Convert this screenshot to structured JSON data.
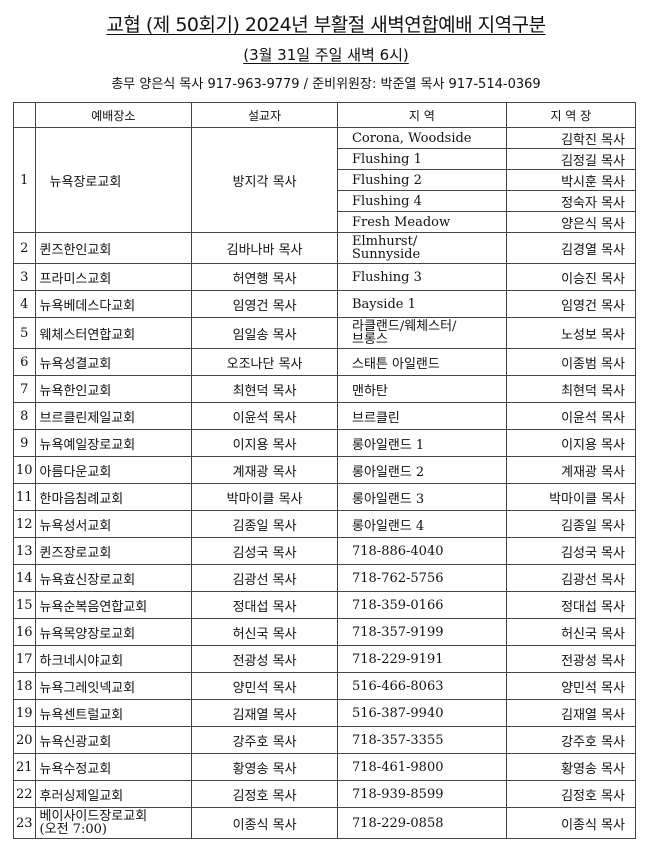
{
  "title": "교협 (제 50회기) 2024년 부활절 새벽연합예배 지역구분",
  "subtitle": "(3월 31일 주일 새벽 6시)",
  "contact": "총무 양은식 목사 917-963-9779 /   준비위원장: 박준열 목사 917-514-0369",
  "headers": [
    "",
    "예배장소",
    "설교자",
    "지 역",
    "지 역 장"
  ],
  "first_row": {
    "no": "1",
    "church": "뉴욕장로교회",
    "preacher": "방지각 목사",
    "regions": [
      {
        "region": "Corona, Woodside",
        "leader": "김학진 목사"
      },
      {
        "region": "Flushing 1",
        "leader": "김정길 목사"
      },
      {
        "region": "Flushing 2",
        "leader": "박시훈 목사"
      },
      {
        "region": "Flushing 4",
        "leader": "정숙자 목사"
      },
      {
        "region": "Fresh Meadow",
        "leader": "양은식 목사"
      }
    ]
  },
  "rows": [
    {
      "no": "2",
      "church": "퀸즈한인교회",
      "preacher": "김바나바 목사",
      "region": "Elmhurst/\nSunnyside",
      "leader": "김경열 목사"
    },
    {
      "no": "3",
      "church": "프라미스교회",
      "preacher": "허연행 목사",
      "region": "Flushing 3",
      "leader": "이승진 목사"
    },
    {
      "no": "4",
      "church": "뉴욕베데스다교회",
      "preacher": "임영건 목사",
      "region": "Bayside 1",
      "leader": "임영건 목사"
    },
    {
      "no": "5",
      "church": "웨체스터연합교회",
      "preacher": "임일송 목사",
      "region": "라클랜드/웨체스터/\n브롱스",
      "leader": "노성보 목사"
    },
    {
      "no": "6",
      "church": "뉴욕성결교회",
      "preacher": "오조나단 목사",
      "region": "스태튼 아일랜드",
      "leader": "이종범 목사"
    },
    {
      "no": "7",
      "church": "뉴욕한인교회",
      "preacher": "최현덕 목사",
      "region": "맨하탄",
      "leader": "최현덕 목사"
    },
    {
      "no": "8",
      "church": "브르클린제일교회",
      "preacher": "이윤석 목사",
      "region": "브르클린",
      "leader": "이윤석 목사"
    },
    {
      "no": "9",
      "church": "뉴욕예일장로교회",
      "preacher": "이지용 목사",
      "region": "롱아일랜드 1",
      "leader": "이지용 목사"
    },
    {
      "no": "10",
      "church": "아름다운교회",
      "preacher": "계재광 목사",
      "region": "롱아일랜드 2",
      "leader": "계재광 목사"
    },
    {
      "no": "11",
      "church": "한마음침례교회",
      "preacher": "박마이클 목사",
      "region": "롱아일랜드 3",
      "leader": "박마이클 목사"
    },
    {
      "no": "12",
      "church": "뉴욕성서교회",
      "preacher": "김종일 목사",
      "region": "롱아일랜드 4",
      "leader": "김종일 목사"
    },
    {
      "no": "13",
      "church": "퀸즈장로교회",
      "preacher": "김성국 목사",
      "region": "718-886-4040",
      "leader": "김성국 목사"
    },
    {
      "no": "14",
      "church": "뉴욕효신장로교회",
      "preacher": "김광선 목사",
      "region": "718-762-5756",
      "leader": "김광선 목사"
    },
    {
      "no": "15",
      "church": "뉴욕순복음연합교회",
      "preacher": "정대섭 목사",
      "region": "718-359-0166",
      "leader": "정대섭 목사"
    },
    {
      "no": "16",
      "church": "뉴욕목양장로교회",
      "preacher": "허신국 목사",
      "region": "718-357-9199",
      "leader": "허신국 목사"
    },
    {
      "no": "17",
      "church": "하크네시야교회",
      "preacher": "전광성 목사",
      "region": "718-229-9191",
      "leader": "전광성 목사"
    },
    {
      "no": "18",
      "church": "뉴욕그레잇넥교회",
      "preacher": "양민석 목사",
      "region": "516-466-8063",
      "leader": "양민석 목사"
    },
    {
      "no": "19",
      "church": "뉴욕센트럴교회",
      "preacher": "김재열 목사",
      "region": "516-387-9940",
      "leader": "김재열 목사"
    },
    {
      "no": "20",
      "church": "뉴욕신광교회",
      "preacher": "강주호 목사",
      "region": "718-357-3355",
      "leader": "강주호 목사"
    },
    {
      "no": "21",
      "church": "뉴욕수정교회",
      "preacher": "황영송 목사",
      "region": "718-461-9800",
      "leader": "황영송 목사"
    },
    {
      "no": "22",
      "church": "후러싱제일교회",
      "preacher": "김정호 목사",
      "region": "718-939-8599",
      "leader": "김정호 목사"
    },
    {
      "no": "23",
      "church": "베이사이드장로교회\n(오전 7:00)",
      "preacher": "이종식 목사",
      "region": "718-229-0858",
      "leader": "이종식 목사"
    }
  ]
}
